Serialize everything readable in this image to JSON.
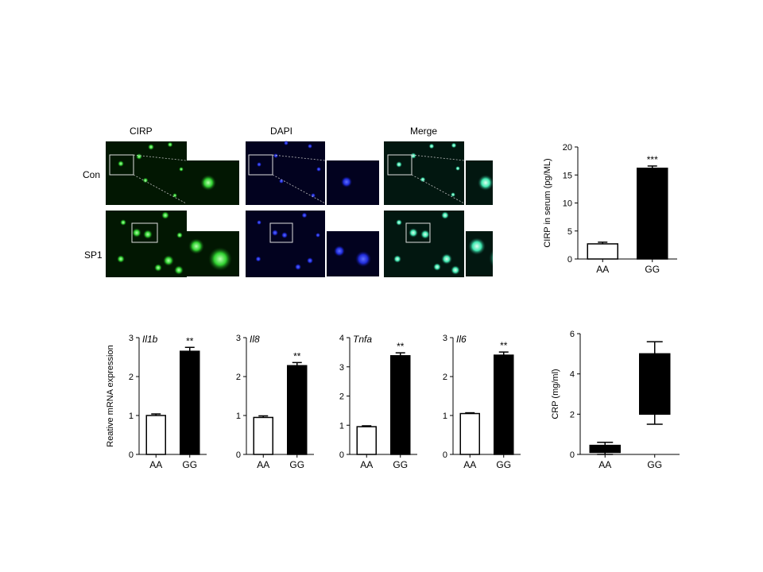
{
  "micrographs": {
    "columns": [
      "CIRP",
      "DAPI",
      "Merge"
    ],
    "rows": [
      "Con",
      "SP1"
    ],
    "colors": {
      "CIRP": "#2fd02f",
      "DAPI": "#1f2bd8",
      "Merge": "#3fe8b0"
    }
  },
  "chart_data": [
    {
      "type": "bar",
      "categories": [
        "AA",
        "GG"
      ],
      "values": [
        2.7,
        16.2
      ],
      "errors": [
        0.3,
        0.4
      ],
      "ylabel": "CIRP in serum (pg/ML)",
      "ylim": [
        0,
        20
      ],
      "yticks": [
        0,
        5,
        10,
        15,
        20
      ],
      "annotations": [
        "",
        "***"
      ],
      "fills": [
        "#ffffff",
        "#000000"
      ]
    },
    {
      "type": "bar",
      "title": "Il1b",
      "categories": [
        "AA",
        "GG"
      ],
      "values": [
        1.0,
        2.65
      ],
      "errors": [
        0.04,
        0.1
      ],
      "ylabel": "Reative  mRNA expression",
      "ylim": [
        0,
        3
      ],
      "yticks": [
        0,
        1,
        2,
        3
      ],
      "annotations": [
        "",
        "**"
      ],
      "fills": [
        "#ffffff",
        "#000000"
      ]
    },
    {
      "type": "bar",
      "title": "Il8",
      "categories": [
        "AA",
        "GG"
      ],
      "values": [
        0.95,
        2.28
      ],
      "errors": [
        0.04,
        0.08
      ],
      "ylabel": "",
      "ylim": [
        0,
        3
      ],
      "yticks": [
        0,
        1,
        2,
        3
      ],
      "annotations": [
        "",
        "**"
      ],
      "fills": [
        "#ffffff",
        "#000000"
      ]
    },
    {
      "type": "bar",
      "title": "Tnfa",
      "categories": [
        "AA",
        "GG"
      ],
      "values": [
        0.95,
        3.38
      ],
      "errors": [
        0.03,
        0.1
      ],
      "ylabel": "",
      "ylim": [
        0,
        4
      ],
      "yticks": [
        0,
        1,
        2,
        3,
        4
      ],
      "annotations": [
        "",
        "**"
      ],
      "fills": [
        "#ffffff",
        "#000000"
      ]
    },
    {
      "type": "bar",
      "title": "Il6",
      "categories": [
        "AA",
        "GG"
      ],
      "values": [
        1.05,
        2.55
      ],
      "errors": [
        0.02,
        0.08
      ],
      "ylabel": "",
      "ylim": [
        0,
        3
      ],
      "yticks": [
        0,
        1,
        2,
        3
      ],
      "annotations": [
        "",
        "**"
      ],
      "fills": [
        "#ffffff",
        "#000000"
      ]
    },
    {
      "type": "box",
      "categories": [
        "AA",
        "GG"
      ],
      "boxes": [
        {
          "min": 0.0,
          "q1": 0.1,
          "q3": 0.45,
          "max": 0.6
        },
        {
          "min": 1.5,
          "q1": 2.0,
          "q3": 5.0,
          "max": 5.6
        }
      ],
      "ylabel": "CRP  (mg/ml)",
      "ylim": [
        0,
        6
      ],
      "yticks": [
        0,
        2,
        4,
        6
      ]
    }
  ]
}
